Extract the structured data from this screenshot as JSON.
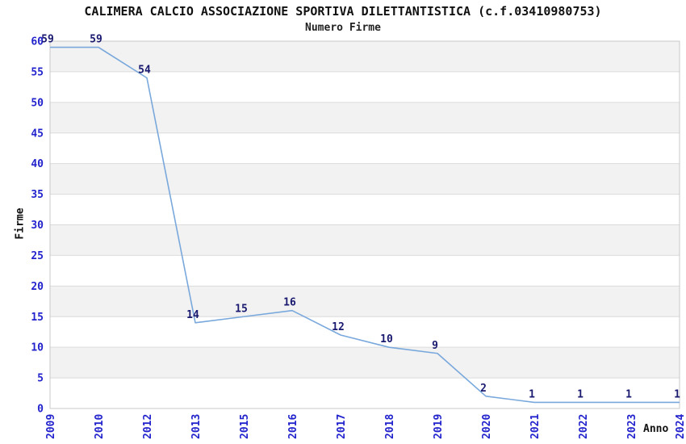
{
  "chart_data": {
    "type": "line",
    "title": "CALIMERA CALCIO ASSOCIAZIONE SPORTIVA DILETTANTISTICA (c.f.03410980753)",
    "subtitle": "Numero Firme",
    "xlabel": "Anno",
    "ylabel": "Firme",
    "categories": [
      "2009",
      "2010",
      "2012",
      "2013",
      "2015",
      "2016",
      "2017",
      "2018",
      "2019",
      "2020",
      "2021",
      "2022",
      "2023",
      "2024"
    ],
    "values": [
      59,
      59,
      54,
      14,
      15,
      16,
      12,
      10,
      9,
      2,
      1,
      1,
      1,
      1
    ],
    "ylim": [
      0,
      60
    ],
    "yticks": [
      0,
      5,
      10,
      15,
      20,
      25,
      30,
      35,
      40,
      45,
      50,
      55,
      60
    ],
    "grid": "horizontal gridlines every 5 units with alternating white/gray bands",
    "legend_position": "none",
    "data_labels_shown": true,
    "colors": {
      "line": "#79a8dc",
      "axis_tick_text": "#2323cd",
      "point_label_text": "#191970",
      "band_fill": "#f2f2f2",
      "gridline": "#dbdbdb",
      "plot_border": "#c8c8c8",
      "title_text": "#111111"
    }
  }
}
